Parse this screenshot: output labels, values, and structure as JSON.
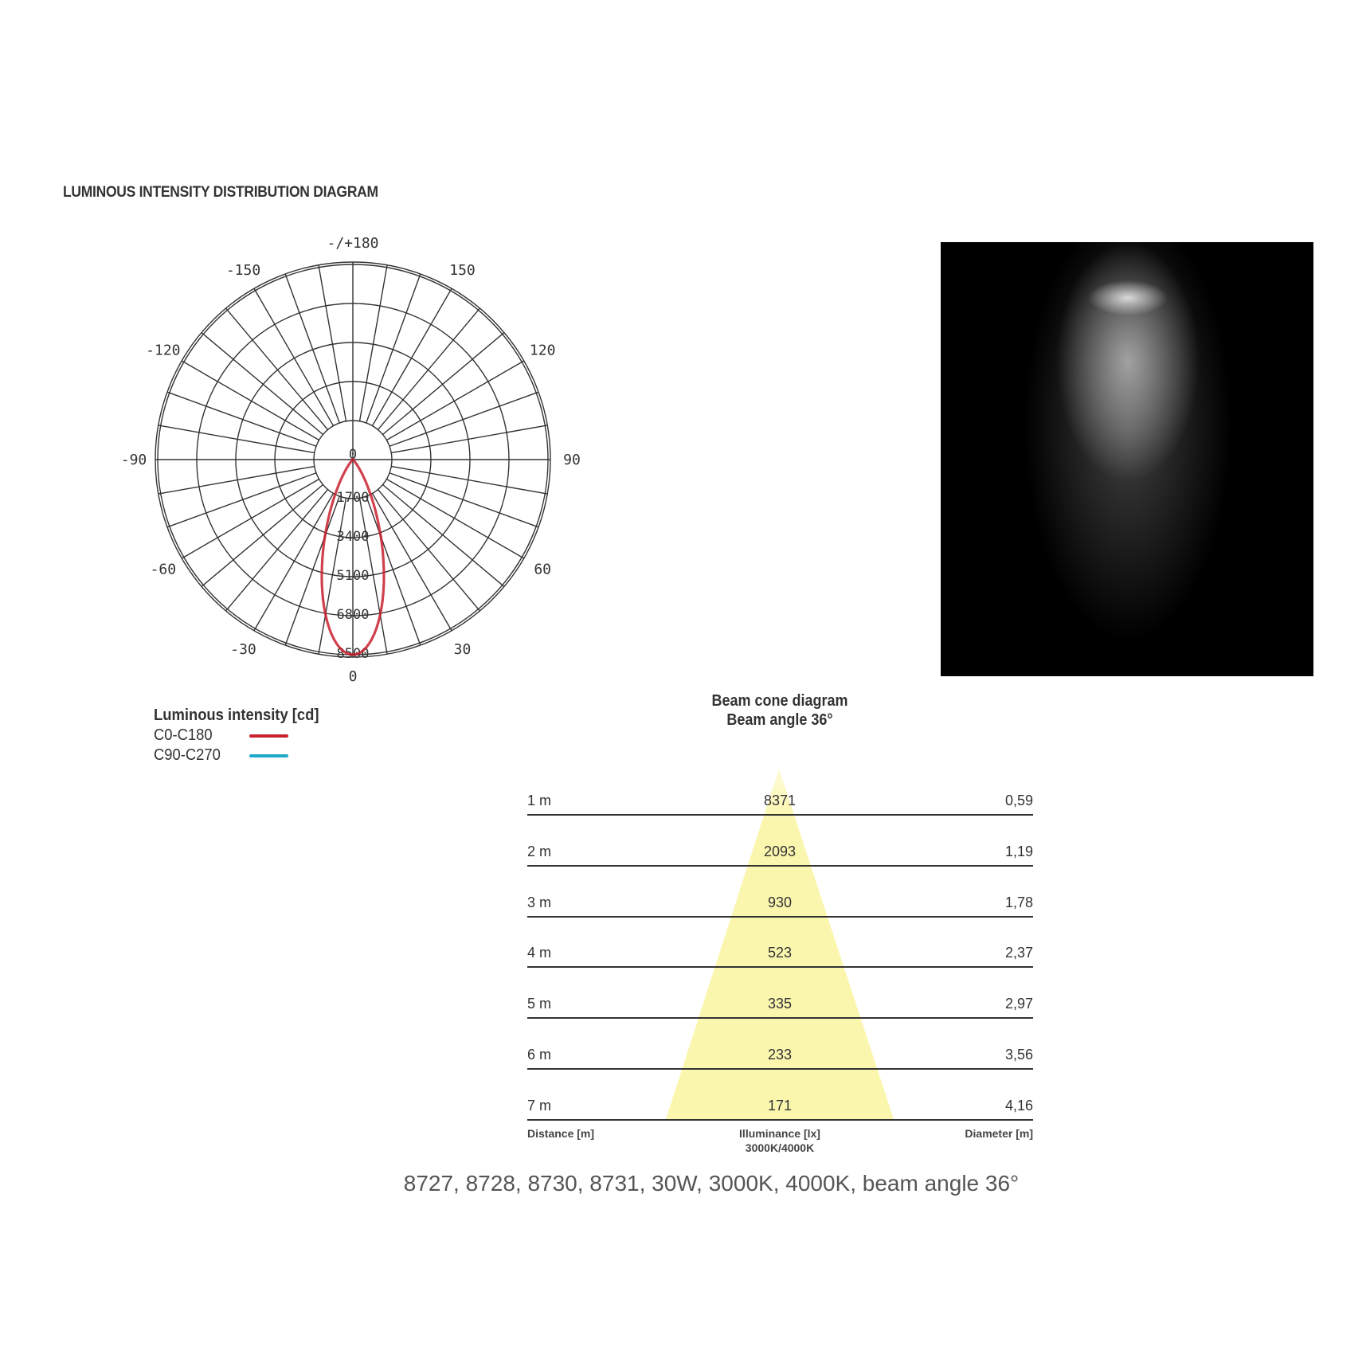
{
  "title": "LUMINOUS INTENSITY DISTRIBUTION DIAGRAM",
  "colors": {
    "c0_c180": "#c8202e",
    "c90_c270": "#1fa8c9",
    "cone": "#fbf6ae",
    "photo_bg": "#000000"
  },
  "chart_data": [
    {
      "type": "polar",
      "angle_labels": [
        "-/+180",
        "-150",
        "150",
        "-120",
        "120",
        "-90",
        "90",
        "-60",
        "60",
        "-30",
        "30",
        "0"
      ],
      "radial_ticks": [
        "0",
        "1700",
        "3400",
        "5100",
        "6800",
        "8500"
      ],
      "radial_range": [
        0,
        8500
      ],
      "angle_step_grid": 10,
      "grid": true,
      "legend_title": "Luminous intensity [cd]",
      "series": [
        {
          "name": "C0-C180",
          "color": "#c8202e",
          "angles": [
            -90,
            -60,
            -40,
            -30,
            -25,
            -20,
            -15,
            -10,
            -5,
            0,
            5,
            10,
            15,
            20,
            25,
            30,
            40,
            60,
            90
          ],
          "values": [
            0,
            0,
            40,
            1000,
            1900,
            3000,
            4500,
            6000,
            7600,
            8500,
            7600,
            6000,
            4500,
            3000,
            1900,
            1000,
            40,
            0,
            0
          ]
        },
        {
          "name": "C90-C270",
          "color": "#1fa8c9"
        }
      ]
    },
    {
      "type": "table",
      "title": "Beam cone diagram",
      "subtitle": "Beam angle 36°",
      "beam_angle_deg": 36,
      "columns": [
        "Distance [m]",
        "Illuminance [lx]",
        "Diameter [m]"
      ],
      "illuminance_note": "3000K/4000K",
      "rows": [
        {
          "distance": "1 m",
          "illuminance": "8371",
          "diameter": "0,59"
        },
        {
          "distance": "2 m",
          "illuminance": "2093",
          "diameter": "1,19"
        },
        {
          "distance": "3 m",
          "illuminance": "930",
          "diameter": "1,78"
        },
        {
          "distance": "4 m",
          "illuminance": "523",
          "diameter": "2,37"
        },
        {
          "distance": "5 m",
          "illuminance": "335",
          "diameter": "2,97"
        },
        {
          "distance": "6 m",
          "illuminance": "233",
          "diameter": "3,56"
        },
        {
          "distance": "7 m",
          "illuminance": "171",
          "diameter": "4,16"
        }
      ]
    }
  ],
  "caption": "8727, 8728, 8730, 8731, 30W, 3000K, 4000K, beam angle 36°"
}
